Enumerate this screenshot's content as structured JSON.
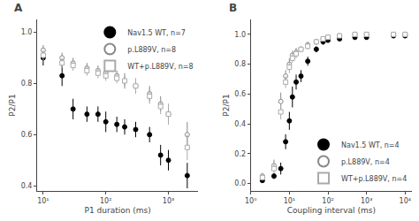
{
  "chart_data": [
    {
      "type": "scatter",
      "title": "A",
      "x_label": "P1 duration (ms)",
      "y_label": "P2/P1",
      "log": "x",
      "grid": false,
      "legend": "upper right",
      "xlim": [
        8,
        3000
      ],
      "xticks": [
        {
          "value": 10,
          "label": "10¹"
        },
        {
          "value": 100,
          "label": "10²"
        },
        {
          "value": 1000,
          "label": "10³"
        }
      ],
      "ylim": [
        0.38,
        1.05
      ],
      "yticks": [
        0.4,
        0.6,
        0.8,
        {
          "value": 1.0,
          "label": "1.0"
        }
      ],
      "series": [
        {
          "name": "Nav1.5 WT, n=7",
          "color": "#000000",
          "marker": "circle",
          "x": [
            10,
            20,
            30,
            50,
            75,
            100,
            150,
            200,
            300,
            500,
            750,
            1000,
            2000
          ],
          "values": [
            0.9,
            0.83,
            0.7,
            0.68,
            0.68,
            0.65,
            0.64,
            0.63,
            0.62,
            0.6,
            0.52,
            0.5,
            0.44
          ],
          "errors": [
            0.03,
            0.04,
            0.04,
            0.03,
            0.03,
            0.04,
            0.03,
            0.03,
            0.03,
            0.03,
            0.04,
            0.04,
            0.05
          ]
        },
        {
          "name": "p.L889V, n=8",
          "color": "#888888",
          "marker": "circle-open",
          "x": [
            10,
            20,
            30,
            50,
            75,
            100,
            150,
            200,
            300,
            500,
            750,
            1000,
            2000
          ],
          "values": [
            0.93,
            0.9,
            0.88,
            0.86,
            0.85,
            0.84,
            0.83,
            0.81,
            0.79,
            0.76,
            0.72,
            0.68,
            0.6
          ],
          "errors": [
            0.02,
            0.02,
            0.02,
            0.02,
            0.02,
            0.02,
            0.02,
            0.03,
            0.03,
            0.03,
            0.03,
            0.04,
            0.05
          ]
        },
        {
          "name": "WT+p.L889V, n=8",
          "color": "#aaaaaa",
          "marker": "square-open",
          "x": [
            10,
            20,
            30,
            50,
            75,
            100,
            150,
            200,
            300,
            500,
            750,
            1000,
            2000
          ],
          "values": [
            0.91,
            0.88,
            0.87,
            0.85,
            0.84,
            0.83,
            0.82,
            0.81,
            0.79,
            0.75,
            0.71,
            0.68,
            0.55
          ],
          "errors": [
            0.02,
            0.02,
            0.02,
            0.02,
            0.02,
            0.02,
            0.02,
            0.02,
            0.03,
            0.03,
            0.03,
            0.04,
            0.05
          ]
        }
      ]
    },
    {
      "type": "scatter",
      "title": "B",
      "x_label": "Coupling interval (ms)",
      "y_label": "P2/P1",
      "log": "x",
      "grid": false,
      "legend": "lower right",
      "xlim": [
        1,
        15000
      ],
      "xticks": [
        {
          "value": 1,
          "label": "10⁰"
        },
        {
          "value": 10,
          "label": "10¹"
        },
        {
          "value": 100,
          "label": "10²"
        },
        {
          "value": 1000,
          "label": "10³"
        },
        {
          "value": 10000,
          "label": "10⁴"
        }
      ],
      "ylim": [
        -0.05,
        1.1
      ],
      "yticks": [
        {
          "value": 0.0,
          "label": "0.0"
        },
        0.2,
        0.4,
        0.6,
        0.8,
        {
          "value": 1.0,
          "label": "1.0"
        }
      ],
      "series": [
        {
          "name": "Nav1.5 WT, n=4",
          "color": "#000000",
          "marker": "circle",
          "x": [
            2,
            4,
            6,
            8,
            10,
            12,
            15,
            20,
            30,
            50,
            75,
            100,
            200,
            500,
            1000,
            5000,
            10000
          ],
          "values": [
            0.02,
            0.05,
            0.1,
            0.28,
            0.42,
            0.58,
            0.68,
            0.72,
            0.82,
            0.9,
            0.95,
            0.96,
            0.97,
            0.98,
            0.98,
            0.99,
            0.99
          ],
          "errors": [
            0.01,
            0.02,
            0.04,
            0.05,
            0.06,
            0.07,
            0.05,
            0.04,
            0.03,
            0.02,
            0.02,
            0.01,
            0.01,
            0.01,
            0.01,
            0.01,
            0.01
          ]
        },
        {
          "name": "p.L889V, n=4",
          "color": "#888888",
          "marker": "circle-open",
          "x": [
            2,
            4,
            6,
            8,
            10,
            12,
            15,
            20,
            30,
            50,
            75,
            100,
            200,
            500,
            1000,
            5000,
            10000
          ],
          "values": [
            0.05,
            0.12,
            0.55,
            0.72,
            0.8,
            0.86,
            0.88,
            0.9,
            0.93,
            0.95,
            0.97,
            0.98,
            0.99,
            1.0,
            1.0,
            1.0,
            1.0
          ],
          "errors": [
            0.02,
            0.04,
            0.06,
            0.04,
            0.04,
            0.03,
            0.03,
            0.02,
            0.02,
            0.02,
            0.01,
            0.01,
            0.01,
            0.01,
            0.01,
            0.01,
            0.01
          ]
        },
        {
          "name": "WT+p.L889V, n=4",
          "color": "#aaaaaa",
          "marker": "square-open",
          "x": [
            2,
            4,
            6,
            8,
            10,
            12,
            15,
            20,
            30,
            50,
            75,
            100,
            200,
            500,
            1000,
            5000,
            10000
          ],
          "values": [
            0.04,
            0.1,
            0.48,
            0.68,
            0.78,
            0.84,
            0.87,
            0.9,
            0.92,
            0.95,
            0.97,
            0.98,
            0.99,
            1.0,
            1.0,
            1.0,
            1.0
          ],
          "errors": [
            0.02,
            0.03,
            0.05,
            0.04,
            0.04,
            0.03,
            0.03,
            0.02,
            0.02,
            0.02,
            0.01,
            0.01,
            0.01,
            0.01,
            0.01,
            0.01,
            0.01
          ]
        }
      ]
    }
  ]
}
